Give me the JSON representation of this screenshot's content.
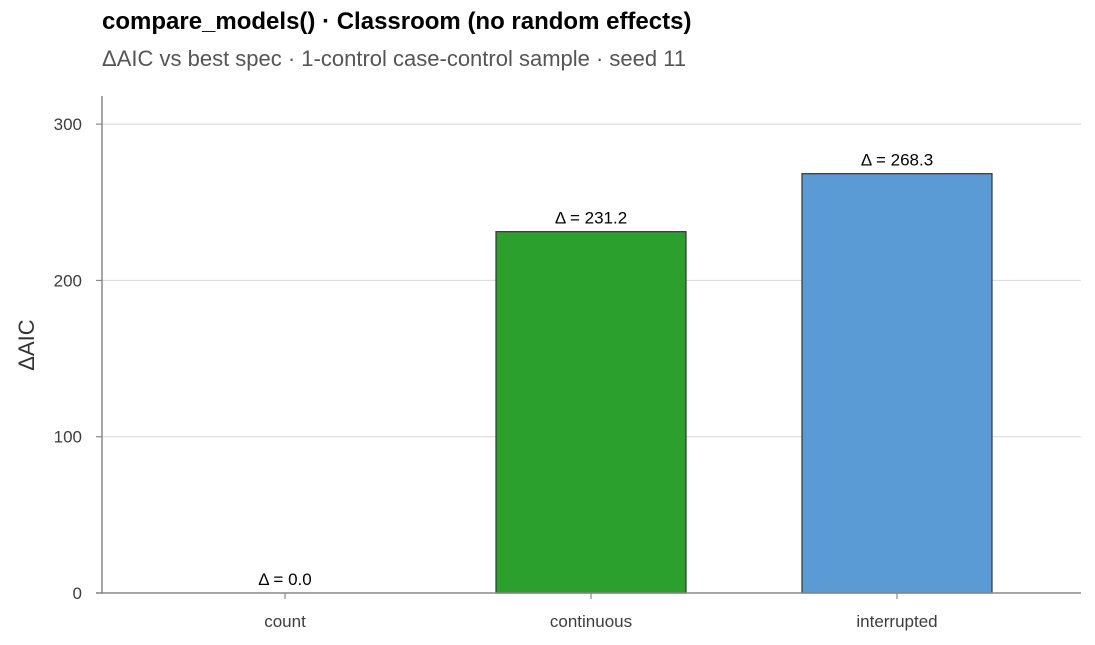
{
  "title": "compare_models() · Classroom (no random effects)",
  "subtitle": "ΔAIC vs best spec · 1-control case-control sample · seed 11",
  "chart_data": {
    "type": "bar",
    "title": "compare_models() · Classroom (no random effects)",
    "subtitle": "ΔAIC vs best spec · 1-control case-control sample · seed 11",
    "xlabel": "",
    "ylabel": "ΔAIC",
    "categories": [
      "count",
      "continuous",
      "interrupted"
    ],
    "values": [
      0.0,
      231.2,
      268.3
    ],
    "data_labels": [
      "Δ = 0.0",
      "Δ = 231.2",
      "Δ = 268.3"
    ],
    "colors": [
      "#2ca02c",
      "#2ca02c",
      "#5b9bd5"
    ],
    "ylim": [
      0,
      318
    ],
    "yticks": [
      0,
      100,
      200,
      300
    ],
    "ytick_labels": [
      "0",
      "100",
      "200",
      "300"
    ],
    "grid": true,
    "legend": "none"
  }
}
